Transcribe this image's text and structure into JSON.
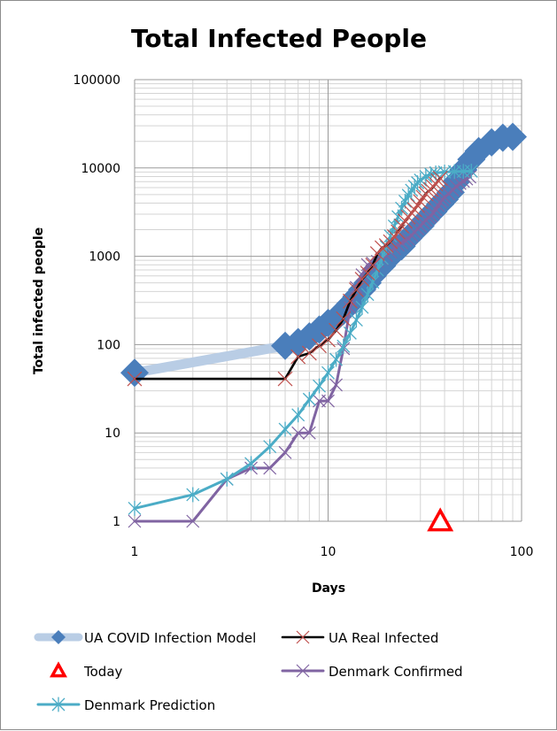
{
  "chart_data": {
    "type": "line",
    "title": "Total Infected People",
    "xlabel": "Days",
    "ylabel": "Total infected people",
    "xscale": "log",
    "yscale": "log",
    "xlim": [
      1,
      100
    ],
    "ylim": [
      1,
      100000
    ],
    "x_ticks": [
      "1",
      "10",
      "100"
    ],
    "y_ticks": [
      "1",
      "10",
      "100",
      "1000",
      "10000",
      "100000"
    ],
    "grid": "major and minor on both axes",
    "legend_position": "bottom",
    "series": [
      {
        "name": "UA COVID Infection Model",
        "color": "#4a7ebb",
        "line_color": "#b9cde5",
        "marker": "diamond",
        "points": [
          [
            1,
            48
          ],
          [
            6,
            97
          ],
          [
            7,
            107
          ],
          [
            8,
            124
          ],
          [
            9,
            148
          ],
          [
            10,
            176
          ],
          [
            11,
            200
          ],
          [
            12,
            240
          ],
          [
            13,
            290
          ],
          [
            14,
            350
          ],
          [
            15,
            420
          ],
          [
            16,
            500
          ],
          [
            17,
            600
          ],
          [
            18,
            700
          ],
          [
            19,
            780
          ],
          [
            20,
            900
          ],
          [
            22,
            1100
          ],
          [
            24,
            1300
          ],
          [
            26,
            1600
          ],
          [
            28,
            1900
          ],
          [
            30,
            2200
          ],
          [
            32,
            2600
          ],
          [
            35,
            3200
          ],
          [
            38,
            3900
          ],
          [
            40,
            4400
          ],
          [
            43,
            5300
          ],
          [
            46,
            7000
          ],
          [
            50,
            9500
          ],
          [
            55,
            12500
          ],
          [
            60,
            15500
          ],
          [
            70,
            19500
          ],
          [
            80,
            22000
          ],
          [
            90,
            22500
          ]
        ]
      },
      {
        "name": "UA Real Infected",
        "color": "#000000",
        "marker_color": "#c0504d",
        "marker": "x",
        "points": [
          [
            1,
            41
          ],
          [
            6,
            41
          ],
          [
            7,
            73
          ],
          [
            8,
            80
          ],
          [
            9,
            97
          ],
          [
            10,
            113
          ],
          [
            11,
            145
          ],
          [
            12,
            196
          ],
          [
            13,
            311
          ],
          [
            14,
            418
          ],
          [
            15,
            549
          ],
          [
            16,
            645
          ],
          [
            17,
            794
          ],
          [
            18,
            1072
          ],
          [
            19,
            1251
          ],
          [
            20,
            1319
          ],
          [
            21,
            1462
          ],
          [
            22,
            1668
          ],
          [
            23,
            1892
          ],
          [
            24,
            2203
          ],
          [
            25,
            2511
          ],
          [
            26,
            2777
          ],
          [
            27,
            3102
          ],
          [
            28,
            3372
          ],
          [
            29,
            3764
          ],
          [
            30,
            4161
          ],
          [
            31,
            4662
          ],
          [
            32,
            5106
          ],
          [
            33,
            5449
          ],
          [
            34,
            5710
          ],
          [
            35,
            6125
          ],
          [
            36,
            6592
          ],
          [
            37,
            7170
          ],
          [
            38,
            7647
          ]
        ]
      },
      {
        "name": "Today",
        "color": "#ff0000",
        "marker": "triangle",
        "points": [
          [
            38,
            1
          ]
        ]
      },
      {
        "name": "Denmark Confirmed",
        "color": "#8064a2",
        "marker": "x",
        "points": [
          [
            1,
            1
          ],
          [
            2,
            1
          ],
          [
            3,
            3
          ],
          [
            4,
            4
          ],
          [
            5,
            4
          ],
          [
            6,
            6
          ],
          [
            7,
            10
          ],
          [
            8,
            10
          ],
          [
            9,
            23
          ],
          [
            10,
            23
          ],
          [
            11,
            35
          ],
          [
            12,
            90
          ],
          [
            13,
            262
          ],
          [
            14,
            444
          ],
          [
            15,
            617
          ],
          [
            16,
            804
          ],
          [
            17,
            836
          ],
          [
            18,
            875
          ],
          [
            19,
            933
          ],
          [
            20,
            1024
          ],
          [
            21,
            1115
          ],
          [
            22,
            1225
          ],
          [
            23,
            1337
          ],
          [
            24,
            1420
          ],
          [
            25,
            1514
          ],
          [
            26,
            1572
          ],
          [
            27,
            1724
          ],
          [
            28,
            1877
          ],
          [
            29,
            2046
          ],
          [
            30,
            2201
          ],
          [
            31,
            2395
          ],
          [
            32,
            2564
          ],
          [
            33,
            2755
          ],
          [
            34,
            2860
          ],
          [
            35,
            3107
          ],
          [
            36,
            3386
          ],
          [
            37,
            3757
          ],
          [
            38,
            4077
          ],
          [
            39,
            4369
          ],
          [
            40,
            4681
          ],
          [
            42,
            5071
          ],
          [
            44,
            5635
          ],
          [
            46,
            6174
          ],
          [
            48,
            6681
          ],
          [
            50,
            7074
          ],
          [
            52,
            7515
          ],
          [
            54,
            7912
          ]
        ]
      },
      {
        "name": "Denmark Prediction",
        "color": "#4bacc6",
        "marker": "asterisk",
        "points": [
          [
            1,
            1.4
          ],
          [
            2,
            2
          ],
          [
            3,
            3
          ],
          [
            4,
            4.5
          ],
          [
            5,
            7
          ],
          [
            6,
            11
          ],
          [
            7,
            16
          ],
          [
            8,
            24
          ],
          [
            9,
            34
          ],
          [
            10,
            48
          ],
          [
            11,
            68
          ],
          [
            12,
            96
          ],
          [
            13,
            135
          ],
          [
            14,
            190
          ],
          [
            15,
            265
          ],
          [
            16,
            370
          ],
          [
            17,
            510
          ],
          [
            18,
            700
          ],
          [
            19,
            950
          ],
          [
            20,
            1280
          ],
          [
            21,
            1700
          ],
          [
            22,
            2200
          ],
          [
            23,
            2800
          ],
          [
            24,
            3500
          ],
          [
            25,
            4200
          ],
          [
            26,
            4900
          ],
          [
            27,
            5600
          ],
          [
            28,
            6200
          ],
          [
            29,
            6800
          ],
          [
            30,
            7300
          ],
          [
            32,
            8000
          ],
          [
            34,
            8500
          ],
          [
            36,
            8800
          ],
          [
            40,
            9000
          ],
          [
            45,
            9100
          ],
          [
            50,
            9150
          ],
          [
            55,
            9200
          ]
        ]
      }
    ]
  }
}
